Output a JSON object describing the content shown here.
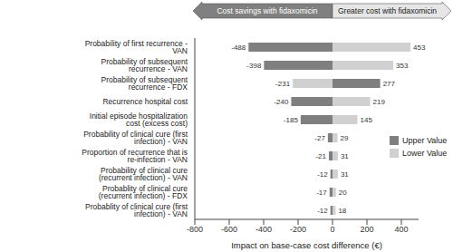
{
  "chart_data": {
    "type": "bar",
    "orientation": "horizontal",
    "stacked": true,
    "data_labels": true,
    "grid": false,
    "legend": "right",
    "annotations": [
      "Cost savings with fidaxomicin",
      "Greater cost with fidaxomicin"
    ],
    "x_label": "Impact on base-case cost difference (€)",
    "categories": [
      "Probability of first recurrence - VAN",
      "Probability of subsequent recurrence - VAN",
      "Probability of subsequent recurrence - FDX",
      "Recurrence hospital cost",
      "Initial episode hospitalization cost (excess cost)",
      "Probability of clinical cure (first infection) - VAN",
      "Proportion of recurrence that is re-infection - VAN",
      "Probability of clinical cure (recurrent infection) - VAN",
      "Probablity of clinical cure (recurrent infection) - FDX",
      "Probablity of clinical cure (first infection) - VAN"
    ],
    "series": [
      {
        "name": "Upper Value",
        "color": "#7f7f7f",
        "values": [
          -488,
          -398,
          277,
          -240,
          -185,
          -27,
          -21,
          -12,
          -17,
          -12
        ]
      },
      {
        "name": "Lower Value",
        "color": "#d0d0d0",
        "values": [
          453,
          353,
          -231,
          219,
          145,
          29,
          31,
          31,
          20,
          18
        ]
      }
    ],
    "xlim": [
      -800,
      500
    ],
    "xticks": [
      -800,
      -600,
      -400,
      -200,
      0,
      200,
      400
    ]
  }
}
